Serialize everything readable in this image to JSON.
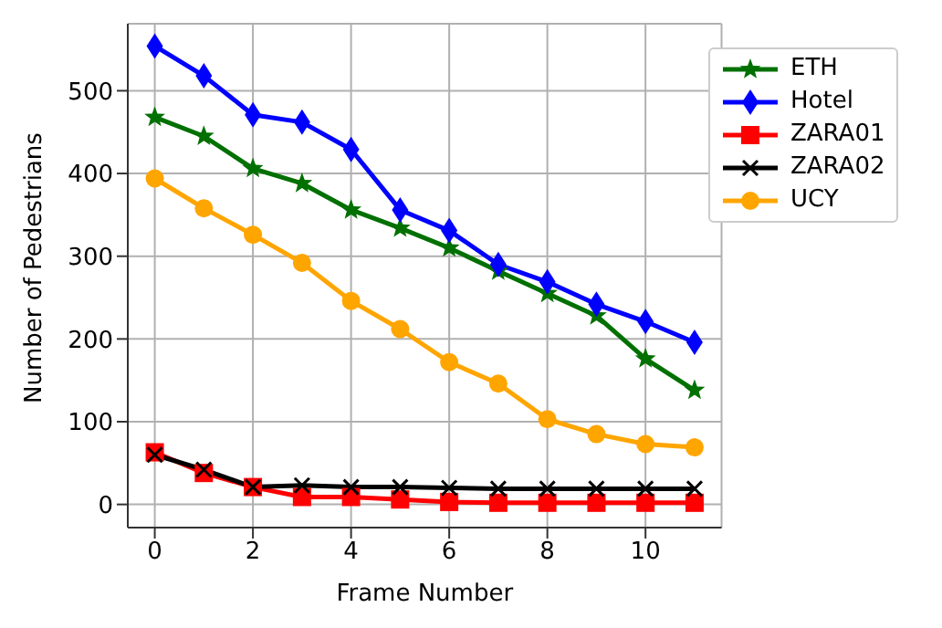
{
  "chart_data": {
    "type": "line",
    "xlabel": "Frame Number",
    "ylabel": "Number of Pedestrians",
    "x": [
      0,
      1,
      2,
      3,
      4,
      5,
      6,
      7,
      8,
      9,
      10,
      11
    ],
    "xlim": [
      -0.55,
      11.55
    ],
    "ylim": [
      -28,
      581
    ],
    "xticks": [
      0,
      2,
      4,
      6,
      8,
      10
    ],
    "yticks": [
      0,
      100,
      200,
      300,
      400,
      500
    ],
    "grid": true,
    "legend": "top right",
    "line_style": "solid",
    "series": [
      {
        "name": "ETH",
        "color": "#007000",
        "marker": "star",
        "values": [
          468,
          445,
          406,
          388,
          356,
          334,
          310,
          282,
          255,
          228,
          176,
          138
        ]
      },
      {
        "name": "Hotel",
        "color": "#0000ff",
        "marker": "diamond",
        "values": [
          554,
          518,
          471,
          462,
          429,
          356,
          331,
          290,
          269,
          242,
          221,
          196
        ]
      },
      {
        "name": "ZARA01",
        "color": "#ff0000",
        "marker": "square",
        "values": [
          63,
          38,
          21,
          9,
          9,
          6,
          3,
          2,
          2,
          2,
          2,
          2
        ]
      },
      {
        "name": "ZARA02",
        "color": "#000000",
        "marker": "cross",
        "values": [
          60,
          42,
          21,
          23,
          21,
          21,
          20,
          19,
          19,
          19,
          19,
          19
        ]
      },
      {
        "name": "UCY",
        "color": "#ffa500",
        "marker": "circle",
        "values": [
          394,
          358,
          326,
          292,
          246,
          212,
          172,
          146,
          103,
          85,
          73,
          69
        ]
      }
    ]
  }
}
